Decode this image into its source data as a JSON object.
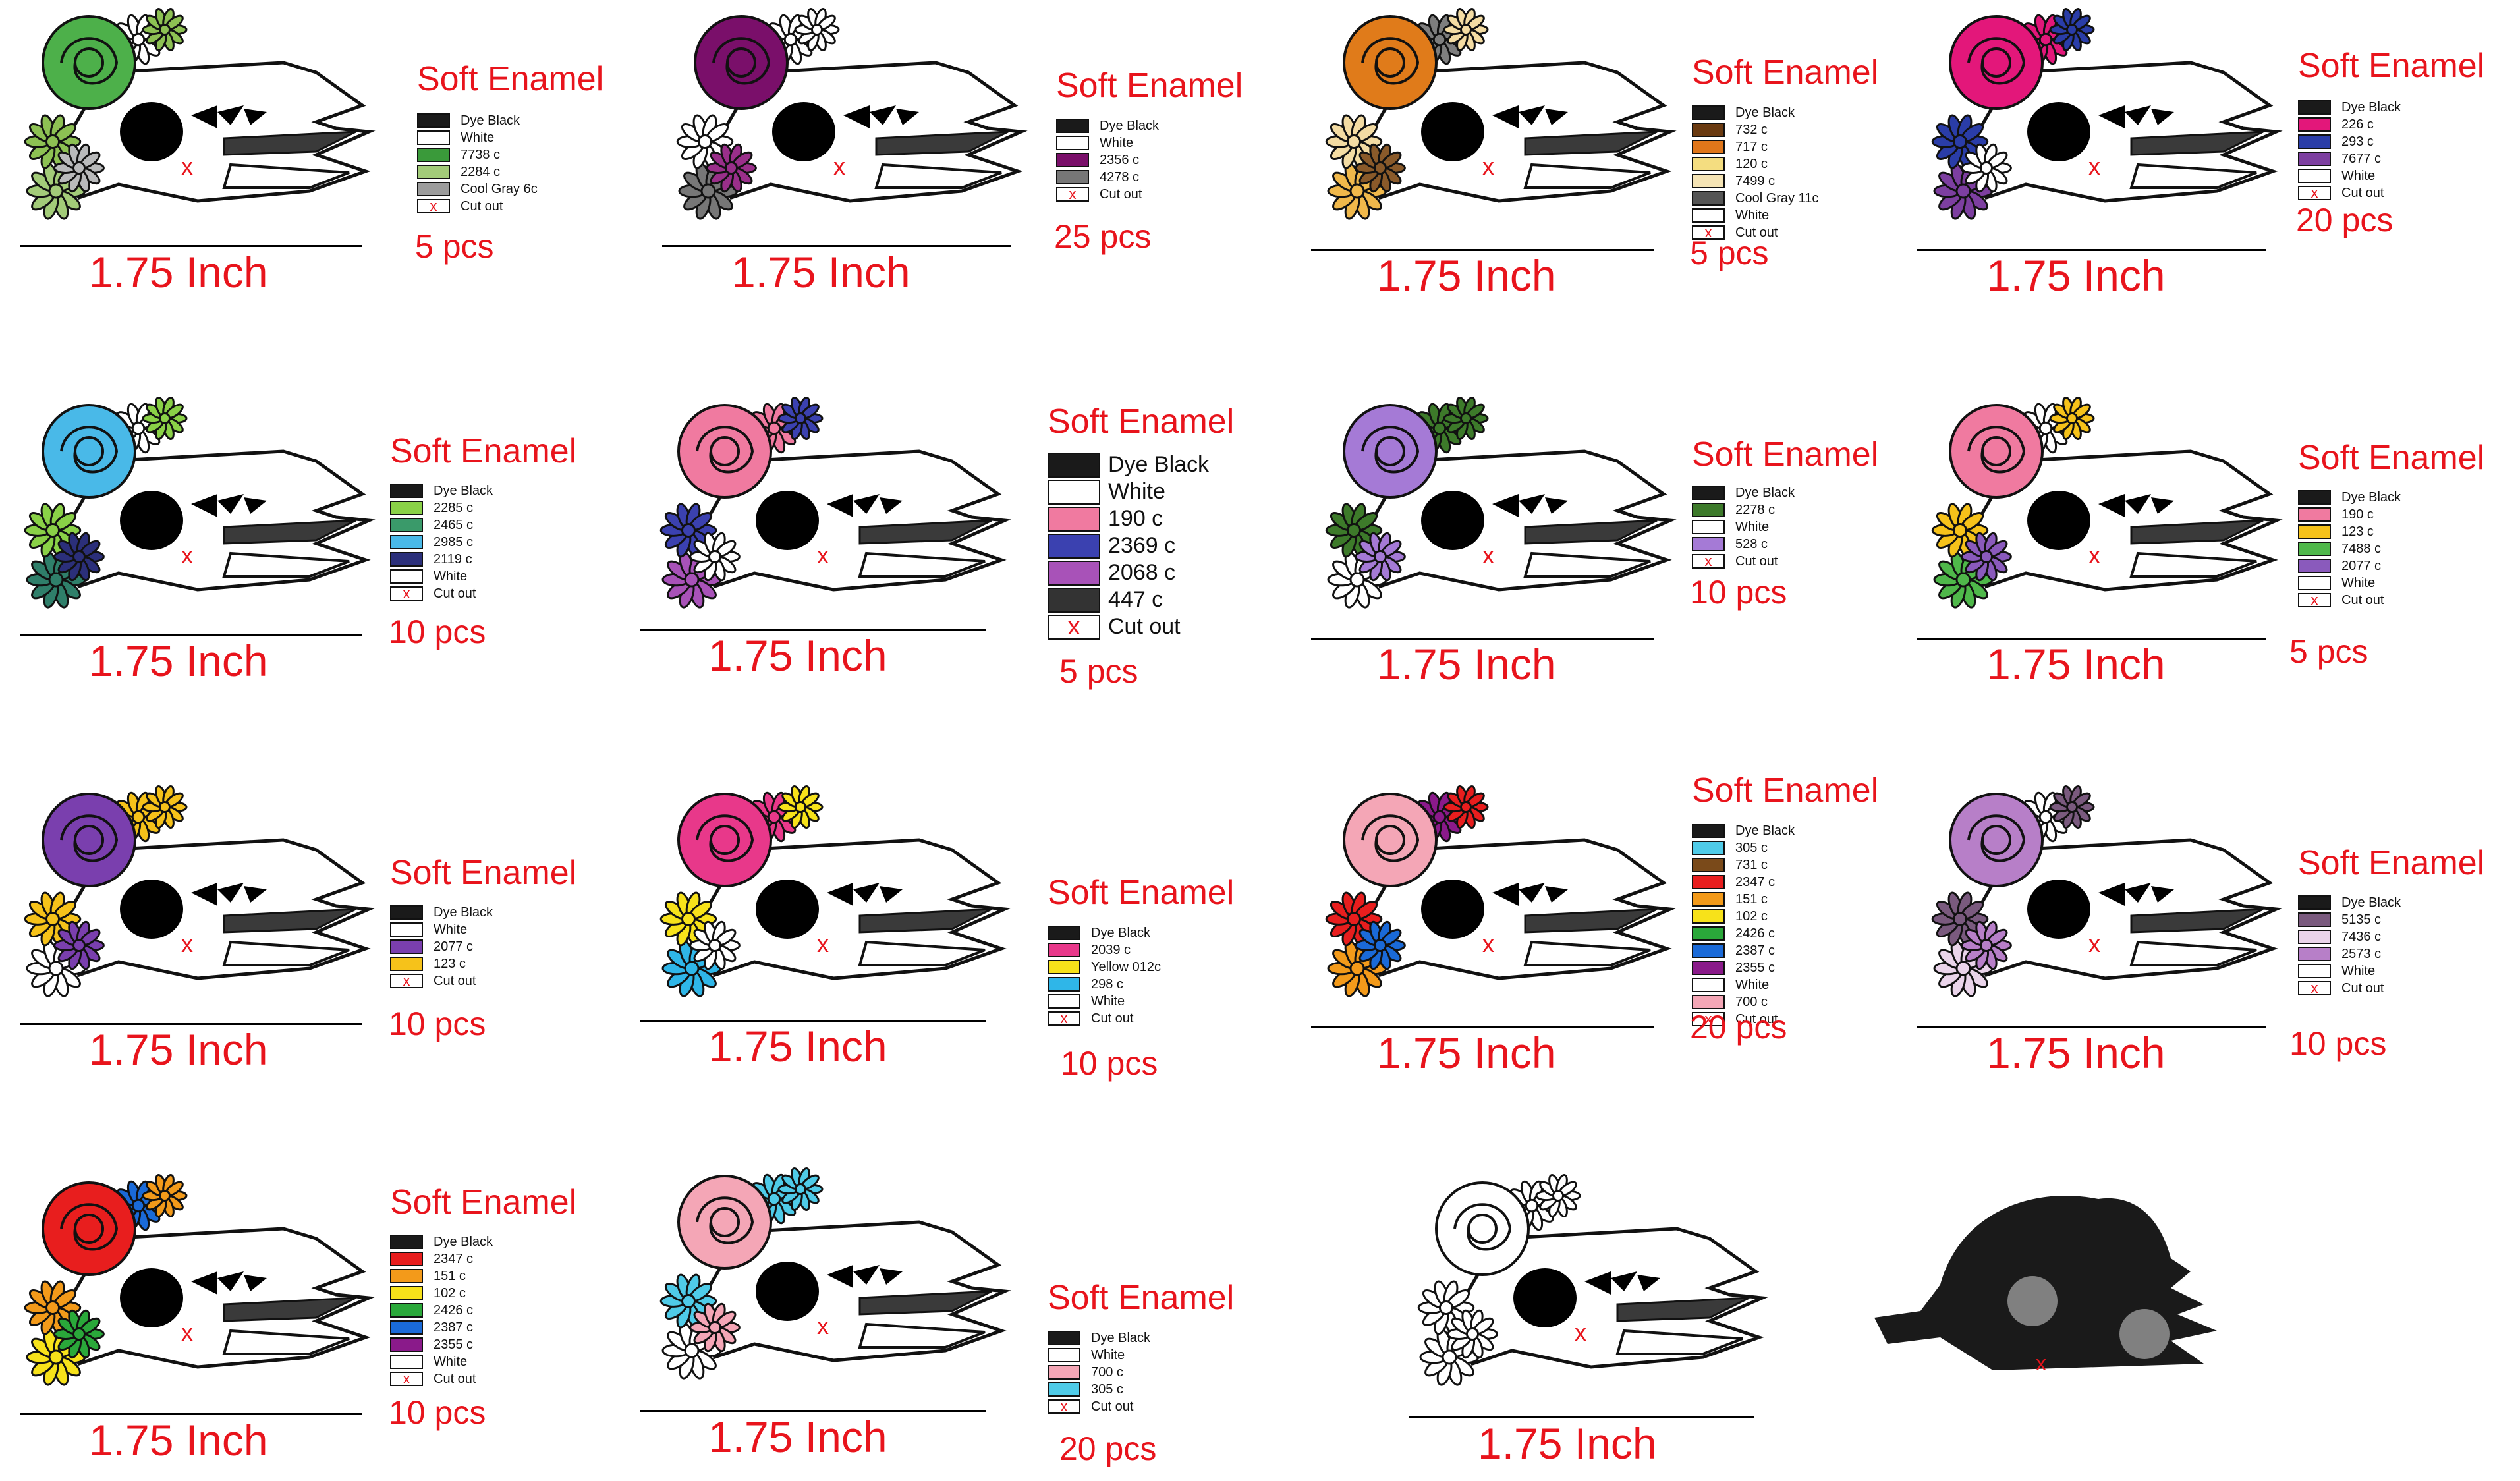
{
  "sheet": {
    "size_label": "1.75 Inch",
    "finish_label": "Soft Enamel",
    "cut_mark": "x",
    "variants": [
      {
        "pcs": "5 pcs",
        "flowers": [
          "#4db04a",
          "#8dc153",
          "#a3cc79",
          "#b9babb",
          "#ffffff"
        ],
        "legend": [
          {
            "label": "Dye Black",
            "color": "#1a1a1a"
          },
          {
            "label": "White",
            "color": "#ffffff"
          },
          {
            "label": "7738 c",
            "color": "#3a9a3a"
          },
          {
            "label": "2284 c",
            "color": "#a3cc79"
          },
          {
            "label": "Cool Gray 6c",
            "color": "#9c9c9c"
          },
          {
            "label": "Cut out",
            "color": "cut"
          }
        ]
      },
      {
        "pcs": "25 pcs",
        "flowers": [
          "#7a0f6a",
          "#ffffff",
          "#777777",
          "#9a2f8a",
          "#ffffff"
        ],
        "legend": [
          {
            "label": "Dye Black",
            "color": "#1a1a1a"
          },
          {
            "label": "White",
            "color": "#ffffff"
          },
          {
            "label": "2356 c",
            "color": "#7a0f6a"
          },
          {
            "label": "4278 c",
            "color": "#777777"
          },
          {
            "label": "Cut out",
            "color": "cut"
          }
        ]
      },
      {
        "pcs": "5 pcs",
        "flowers": [
          "#e07b1a",
          "#f4dca3",
          "#f0b84b",
          "#8a5a2a",
          "#7e7e7e"
        ],
        "legend": [
          {
            "label": "Dye Black",
            "color": "#1a1a1a"
          },
          {
            "label": "732 c",
            "color": "#6a3a10"
          },
          {
            "label": "717 c",
            "color": "#e0761a"
          },
          {
            "label": "120 c",
            "color": "#f4dd80"
          },
          {
            "label": "7499 c",
            "color": "#f5e4b5"
          },
          {
            "label": "Cool Gray 11c",
            "color": "#555555"
          },
          {
            "label": "White",
            "color": "#ffffff"
          },
          {
            "label": "Cut out",
            "color": "cut"
          }
        ]
      },
      {
        "pcs": "20 pcs",
        "flowers": [
          "#e3177a",
          "#2a3da8",
          "#7d3fa0",
          "#ffffff",
          "#e3177a"
        ],
        "legend": [
          {
            "label": "Dye Black",
            "color": "#1a1a1a"
          },
          {
            "label": "226 c",
            "color": "#e3177a"
          },
          {
            "label": "293 c",
            "color": "#2a3da8"
          },
          {
            "label": "7677 c",
            "color": "#7d3fa0"
          },
          {
            "label": "White",
            "color": "#ffffff"
          },
          {
            "label": "Cut out",
            "color": "cut"
          }
        ]
      },
      {
        "pcs": "10 pcs",
        "flowers": [
          "#49b9e8",
          "#8ad147",
          "#2f7f6a",
          "#2b2f7a",
          "#ffffff"
        ],
        "legend": [
          {
            "label": "Dye Black",
            "color": "#1a1a1a"
          },
          {
            "label": "2285 c",
            "color": "#8ad147"
          },
          {
            "label": "2465 c",
            "color": "#3a9a6a"
          },
          {
            "label": "2985 c",
            "color": "#49b9e8"
          },
          {
            "label": "2119 c",
            "color": "#2b2f7a"
          },
          {
            "label": "White",
            "color": "#ffffff"
          },
          {
            "label": "Cut out",
            "color": "cut"
          }
        ]
      },
      {
        "pcs": "5 pcs",
        "flowers": [
          "#f07aa0",
          "#3b41b0",
          "#a852b8",
          "#ffffff",
          "#f07aa0"
        ],
        "legend": [
          {
            "label": "Dye Black",
            "color": "#1a1a1a"
          },
          {
            "label": "White",
            "color": "#ffffff"
          },
          {
            "label": "190 c",
            "color": "#f07aa0"
          },
          {
            "label": "2369 c",
            "color": "#3b41b0"
          },
          {
            "label": "2068 c",
            "color": "#a852b8"
          },
          {
            "label": "447 c",
            "color": "#333333"
          },
          {
            "label": "Cut out",
            "color": "cut"
          }
        ]
      },
      {
        "pcs": "10 pcs",
        "flowers": [
          "#a57ad6",
          "#3d7a2a",
          "#ffffff",
          "#a57ad6",
          "#3d7a2a"
        ],
        "legend": [
          {
            "label": "Dye Black",
            "color": "#1a1a1a"
          },
          {
            "label": "2278 c",
            "color": "#3d7a2a"
          },
          {
            "label": "White",
            "color": "#ffffff"
          },
          {
            "label": "528 c",
            "color": "#a57ad6"
          },
          {
            "label": "Cut out",
            "color": "cut"
          }
        ]
      },
      {
        "pcs": "5 pcs",
        "flowers": [
          "#f07aa0",
          "#f6c21a",
          "#4fb84a",
          "#8a5abc",
          "#ffffff"
        ],
        "legend": [
          {
            "label": "Dye Black",
            "color": "#1a1a1a"
          },
          {
            "label": "190 c",
            "color": "#f07aa0"
          },
          {
            "label": "123 c",
            "color": "#f6c21a"
          },
          {
            "label": "7488 c",
            "color": "#4fb84a"
          },
          {
            "label": "2077 c",
            "color": "#8a5abc"
          },
          {
            "label": "White",
            "color": "#ffffff"
          },
          {
            "label": "Cut out",
            "color": "cut"
          }
        ]
      },
      {
        "pcs": "10 pcs",
        "flowers": [
          "#7a3fae",
          "#f6c21a",
          "#ffffff",
          "#7a3fae",
          "#f6c21a"
        ],
        "legend": [
          {
            "label": "Dye Black",
            "color": "#1a1a1a"
          },
          {
            "label": "White",
            "color": "#ffffff"
          },
          {
            "label": "2077 c",
            "color": "#7a3fae"
          },
          {
            "label": "123 c",
            "color": "#f6c21a"
          },
          {
            "label": "Cut out",
            "color": "cut"
          }
        ]
      },
      {
        "pcs": "10 pcs",
        "flowers": [
          "#e8388a",
          "#f7e21a",
          "#2fb6e8",
          "#ffffff",
          "#e8388a"
        ],
        "legend": [
          {
            "label": "Dye Black",
            "color": "#1a1a1a"
          },
          {
            "label": "2039 c",
            "color": "#e8388a"
          },
          {
            "label": "Yellow 012c",
            "color": "#f7e21a"
          },
          {
            "label": "298 c",
            "color": "#2fb6e8"
          },
          {
            "label": "White",
            "color": "#ffffff"
          },
          {
            "label": "Cut out",
            "color": "cut"
          }
        ]
      },
      {
        "pcs": "20 pcs",
        "flowers": [
          "#f4a6b6",
          "#e81e1e",
          "#f39a1a",
          "#1a6ad8",
          "#8a1a8a"
        ],
        "legend": [
          {
            "label": "Dye Black",
            "color": "#1a1a1a"
          },
          {
            "label": "305 c",
            "color": "#4fcbe8"
          },
          {
            "label": "731 c",
            "color": "#7a4a1a"
          },
          {
            "label": "2347 c",
            "color": "#e81e1e"
          },
          {
            "label": "151 c",
            "color": "#f39a1a"
          },
          {
            "label": "102 c",
            "color": "#f7e21a"
          },
          {
            "label": "2426 c",
            "color": "#2aa83a"
          },
          {
            "label": "2387 c",
            "color": "#1a6ad8"
          },
          {
            "label": "2355 c",
            "color": "#8a1a8a"
          },
          {
            "label": "White",
            "color": "#ffffff"
          },
          {
            "label": "700 c",
            "color": "#f4a6b6"
          },
          {
            "label": "Cut out",
            "color": "cut"
          }
        ]
      },
      {
        "pcs": "10 pcs",
        "flowers": [
          "#b77fc8",
          "#7a5a7e",
          "#ead4ea",
          "#b77fc8",
          "#ffffff"
        ],
        "legend": [
          {
            "label": "Dye Black",
            "color": "#1a1a1a"
          },
          {
            "label": "5135 c",
            "color": "#7a5a7e"
          },
          {
            "label": "7436 c",
            "color": "#ead4ea"
          },
          {
            "label": "2573 c",
            "color": "#b77fc8"
          },
          {
            "label": "White",
            "color": "#ffffff"
          },
          {
            "label": "Cut out",
            "color": "cut"
          }
        ]
      },
      {
        "pcs": "10 pcs",
        "flowers": [
          "#e81e1e",
          "#f39a1a",
          "#f7e21a",
          "#2aa83a",
          "#1a6ad8"
        ],
        "legend": [
          {
            "label": "Dye Black",
            "color": "#1a1a1a"
          },
          {
            "label": "2347 c",
            "color": "#e81e1e"
          },
          {
            "label": "151 c",
            "color": "#f39a1a"
          },
          {
            "label": "102 c",
            "color": "#f7e21a"
          },
          {
            "label": "2426 c",
            "color": "#2aa83a"
          },
          {
            "label": "2387 c",
            "color": "#1a6ad8"
          },
          {
            "label": "2355 c",
            "color": "#8a1a8a"
          },
          {
            "label": "White",
            "color": "#ffffff"
          },
          {
            "label": "Cut out",
            "color": "cut"
          }
        ]
      },
      {
        "pcs": "20 pcs",
        "flowers": [
          "#f4a6b6",
          "#4fcbe8",
          "#ffffff",
          "#f4a6b6",
          "#4fcbe8"
        ],
        "legend": [
          {
            "label": "Dye Black",
            "color": "#1a1a1a"
          },
          {
            "label": "White",
            "color": "#ffffff"
          },
          {
            "label": "700 c",
            "color": "#f4a6b6"
          },
          {
            "label": "305 c",
            "color": "#4fcbe8"
          },
          {
            "label": "Cut out",
            "color": "cut"
          }
        ]
      },
      {
        "pcs": "",
        "flowers": [
          "#ffffff",
          "#ffffff",
          "#ffffff",
          "#ffffff",
          "#ffffff"
        ],
        "legend": []
      },
      {
        "pcs": "",
        "flowers": [],
        "legend": []
      }
    ]
  }
}
